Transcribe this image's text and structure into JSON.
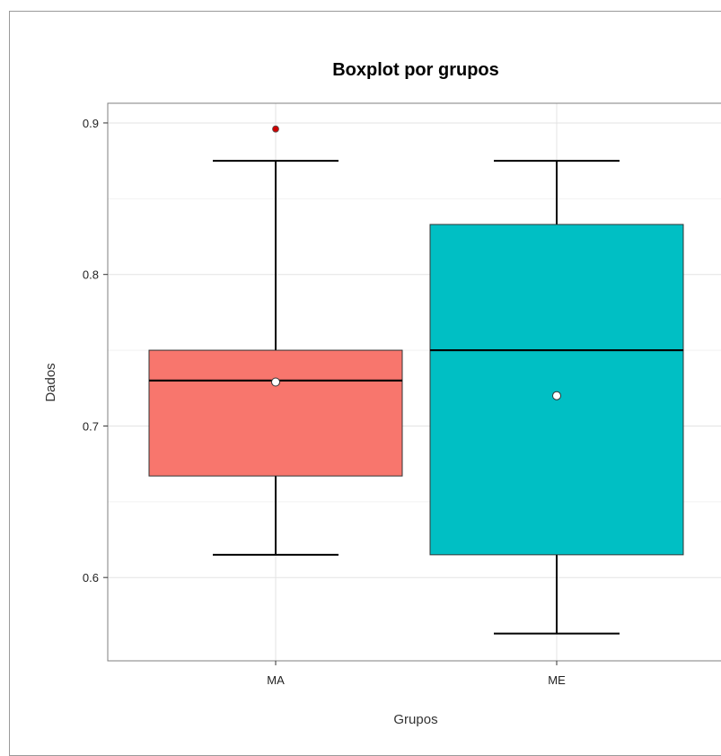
{
  "chart_data": {
    "type": "boxplot",
    "title": "Boxplot por grupos",
    "xlabel": "Grupos",
    "ylabel": "Dados",
    "ylim": [
      0.545,
      0.913
    ],
    "yticks": [
      0.6,
      0.7,
      0.8,
      0.9
    ],
    "ytick_labels": [
      "0.6",
      "0.7",
      "0.8",
      "0.9"
    ],
    "grid": true,
    "legend": "none",
    "categories": [
      "MA",
      "ME"
    ],
    "groups": [
      {
        "name": "MA",
        "whisker_low": 0.615,
        "q1": 0.667,
        "median": 0.73,
        "q3": 0.75,
        "whisker_high": 0.875,
        "mean": 0.729,
        "outliers": [
          0.896
        ],
        "color": "#F8766D"
      },
      {
        "name": "ME",
        "whisker_low": 0.563,
        "q1": 0.615,
        "median": 0.75,
        "q3": 0.833,
        "whisker_high": 0.875,
        "mean": 0.72,
        "outliers": [],
        "color": "#00BFC4"
      }
    ],
    "outlier_color": "#CC0000",
    "mean_marker_color": "#FFFFFF"
  }
}
